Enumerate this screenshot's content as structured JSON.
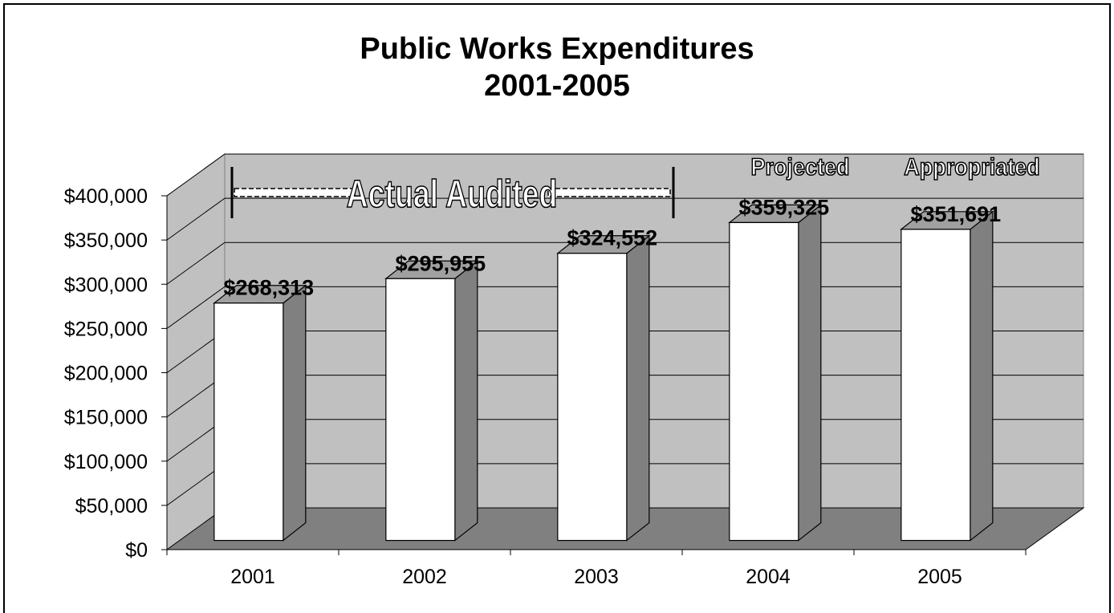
{
  "chart_data": {
    "type": "bar",
    "title_line1": "Public Works Expenditures",
    "title_line2": "2001-2005",
    "categories": [
      "2001",
      "2002",
      "2003",
      "2004",
      "2005"
    ],
    "values": [
      268313,
      295955,
      324552,
      359325,
      351691
    ],
    "value_labels": [
      "$268,313",
      "$295,955",
      "$324,552",
      "$359,325",
      "$351,691"
    ],
    "ylim": [
      0,
      400000
    ],
    "yticks": [
      0,
      50000,
      100000,
      150000,
      200000,
      250000,
      300000,
      350000,
      400000
    ],
    "ytick_labels": [
      "$0",
      "$50,000",
      "$100,000",
      "$150,000",
      "$200,000",
      "$250,000",
      "$300,000",
      "$350,000",
      "$400,000"
    ],
    "grid": true,
    "style": "3d-column",
    "annotations": {
      "actual_audited": "Actual Audited",
      "projected": "Projected",
      "appropriated": "Appropriated"
    },
    "colors": {
      "wall": "#c0c0c0",
      "floor": "#808080",
      "bar_front": "#ffffff",
      "bar_side": "#808080",
      "bar_top": "#a0a0a0"
    }
  }
}
